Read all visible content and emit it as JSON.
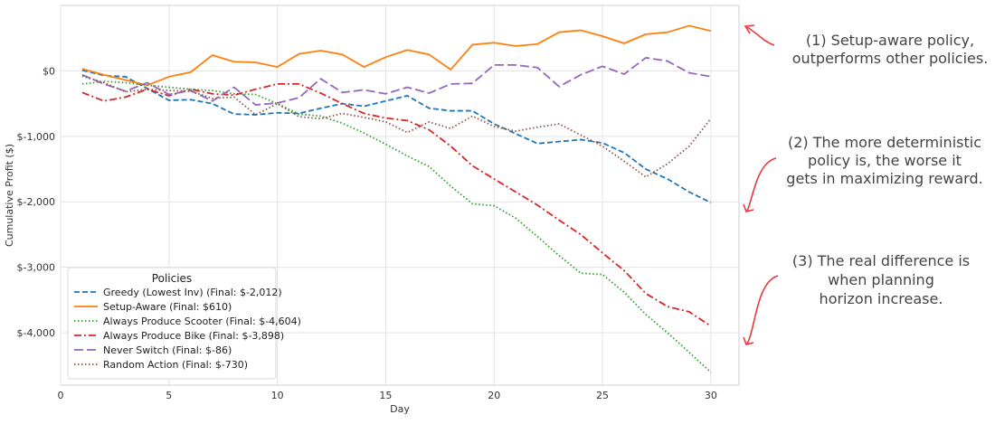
{
  "chart_data": {
    "type": "line",
    "xlabel": "Day",
    "ylabel": "Cumulative Profit ($)",
    "xlim": [
      0,
      31.3
    ],
    "ylim": [
      -4800,
      1000
    ],
    "x_ticks": [
      0,
      5,
      10,
      15,
      20,
      25,
      30
    ],
    "y_ticks": [
      0,
      -1000,
      -2000,
      -3000,
      -4000
    ],
    "y_tick_labels": [
      "$0",
      "$-1,000",
      "$-2,000",
      "$-3,000",
      "$-4,000"
    ],
    "grid": true,
    "legend": {
      "title": "Policies",
      "placement": "lower-left"
    },
    "x": [
      1,
      2,
      3,
      4,
      5,
      6,
      7,
      8,
      9,
      10,
      11,
      12,
      13,
      14,
      15,
      16,
      17,
      18,
      19,
      20,
      21,
      22,
      23,
      24,
      25,
      26,
      27,
      28,
      29,
      30
    ],
    "series": [
      {
        "name": "Greedy (Lowest Inv) (Final: $-2,012)",
        "color": "#1f77b4",
        "dash": "dashed",
        "values": [
          10,
          -70,
          -90,
          -270,
          -450,
          -440,
          -500,
          -660,
          -670,
          -640,
          -650,
          -570,
          -500,
          -540,
          -460,
          -380,
          -570,
          -610,
          -610,
          -810,
          -960,
          -1110,
          -1080,
          -1050,
          -1100,
          -1250,
          -1500,
          -1650,
          -1850,
          -2012
        ]
      },
      {
        "name": "Setup-Aware (Final: $610)",
        "color": "#ff7f0e",
        "dash": "solid",
        "values": [
          30,
          -60,
          -140,
          -220,
          -90,
          -20,
          240,
          140,
          130,
          60,
          260,
          310,
          250,
          60,
          210,
          320,
          250,
          20,
          400,
          430,
          380,
          410,
          590,
          620,
          530,
          420,
          560,
          590,
          690,
          610
        ]
      },
      {
        "name": "Always Produce Scooter (Final: $-4,604)",
        "color": "#2ca02c",
        "dash": "dotted",
        "values": [
          -200,
          -160,
          -180,
          -220,
          -250,
          -280,
          -300,
          -350,
          -360,
          -500,
          -660,
          -690,
          -800,
          -950,
          -1120,
          -1300,
          -1460,
          -1760,
          -2030,
          -2060,
          -2250,
          -2530,
          -2820,
          -3090,
          -3110,
          -3380,
          -3720,
          -4000,
          -4300,
          -4604
        ]
      },
      {
        "name": "Always Produce Bike (Final: $-3,898)",
        "color": "#d62728",
        "dash": "dashdot",
        "values": [
          -330,
          -460,
          -400,
          -280,
          -380,
          -280,
          -350,
          -370,
          -280,
          -200,
          -200,
          -340,
          -500,
          -650,
          -720,
          -760,
          -900,
          -1150,
          -1450,
          -1650,
          -1850,
          -2050,
          -2280,
          -2500,
          -2780,
          -3050,
          -3400,
          -3600,
          -3680,
          -3898
        ]
      },
      {
        "name": "Never Switch (Final: $-86)",
        "color": "#9467bd",
        "dash": "longdash",
        "values": [
          -60,
          -200,
          -310,
          -180,
          -360,
          -300,
          -460,
          -250,
          -520,
          -490,
          -410,
          -120,
          -330,
          -290,
          -350,
          -250,
          -340,
          -200,
          -190,
          90,
          90,
          50,
          -240,
          -60,
          70,
          -50,
          200,
          150,
          -30,
          -86
        ]
      },
      {
        "name": "Random Action (Final: $-730)",
        "color": "#8c564b",
        "dash": "dotted",
        "values": [
          -80,
          -180,
          -320,
          -280,
          -300,
          -310,
          -420,
          -400,
          -670,
          -500,
          -700,
          -730,
          -650,
          -710,
          -780,
          -940,
          -780,
          -880,
          -690,
          -850,
          -920,
          -860,
          -810,
          -980,
          -1150,
          -1380,
          -1620,
          -1420,
          -1150,
          -730
        ]
      }
    ]
  },
  "annotations": [
    {
      "lines": [
        "(1) Setup-aware policy,",
        "outperforms other policies."
      ],
      "color": "#e8383d"
    },
    {
      "lines": [
        "(2) The more deterministic",
        "policy is, the worse it",
        "gets in maximizing reward."
      ],
      "color": "#e8383d"
    },
    {
      "lines": [
        "(3) The real difference is",
        "when planning",
        "horizon increase."
      ],
      "color": "#e8383d"
    }
  ]
}
